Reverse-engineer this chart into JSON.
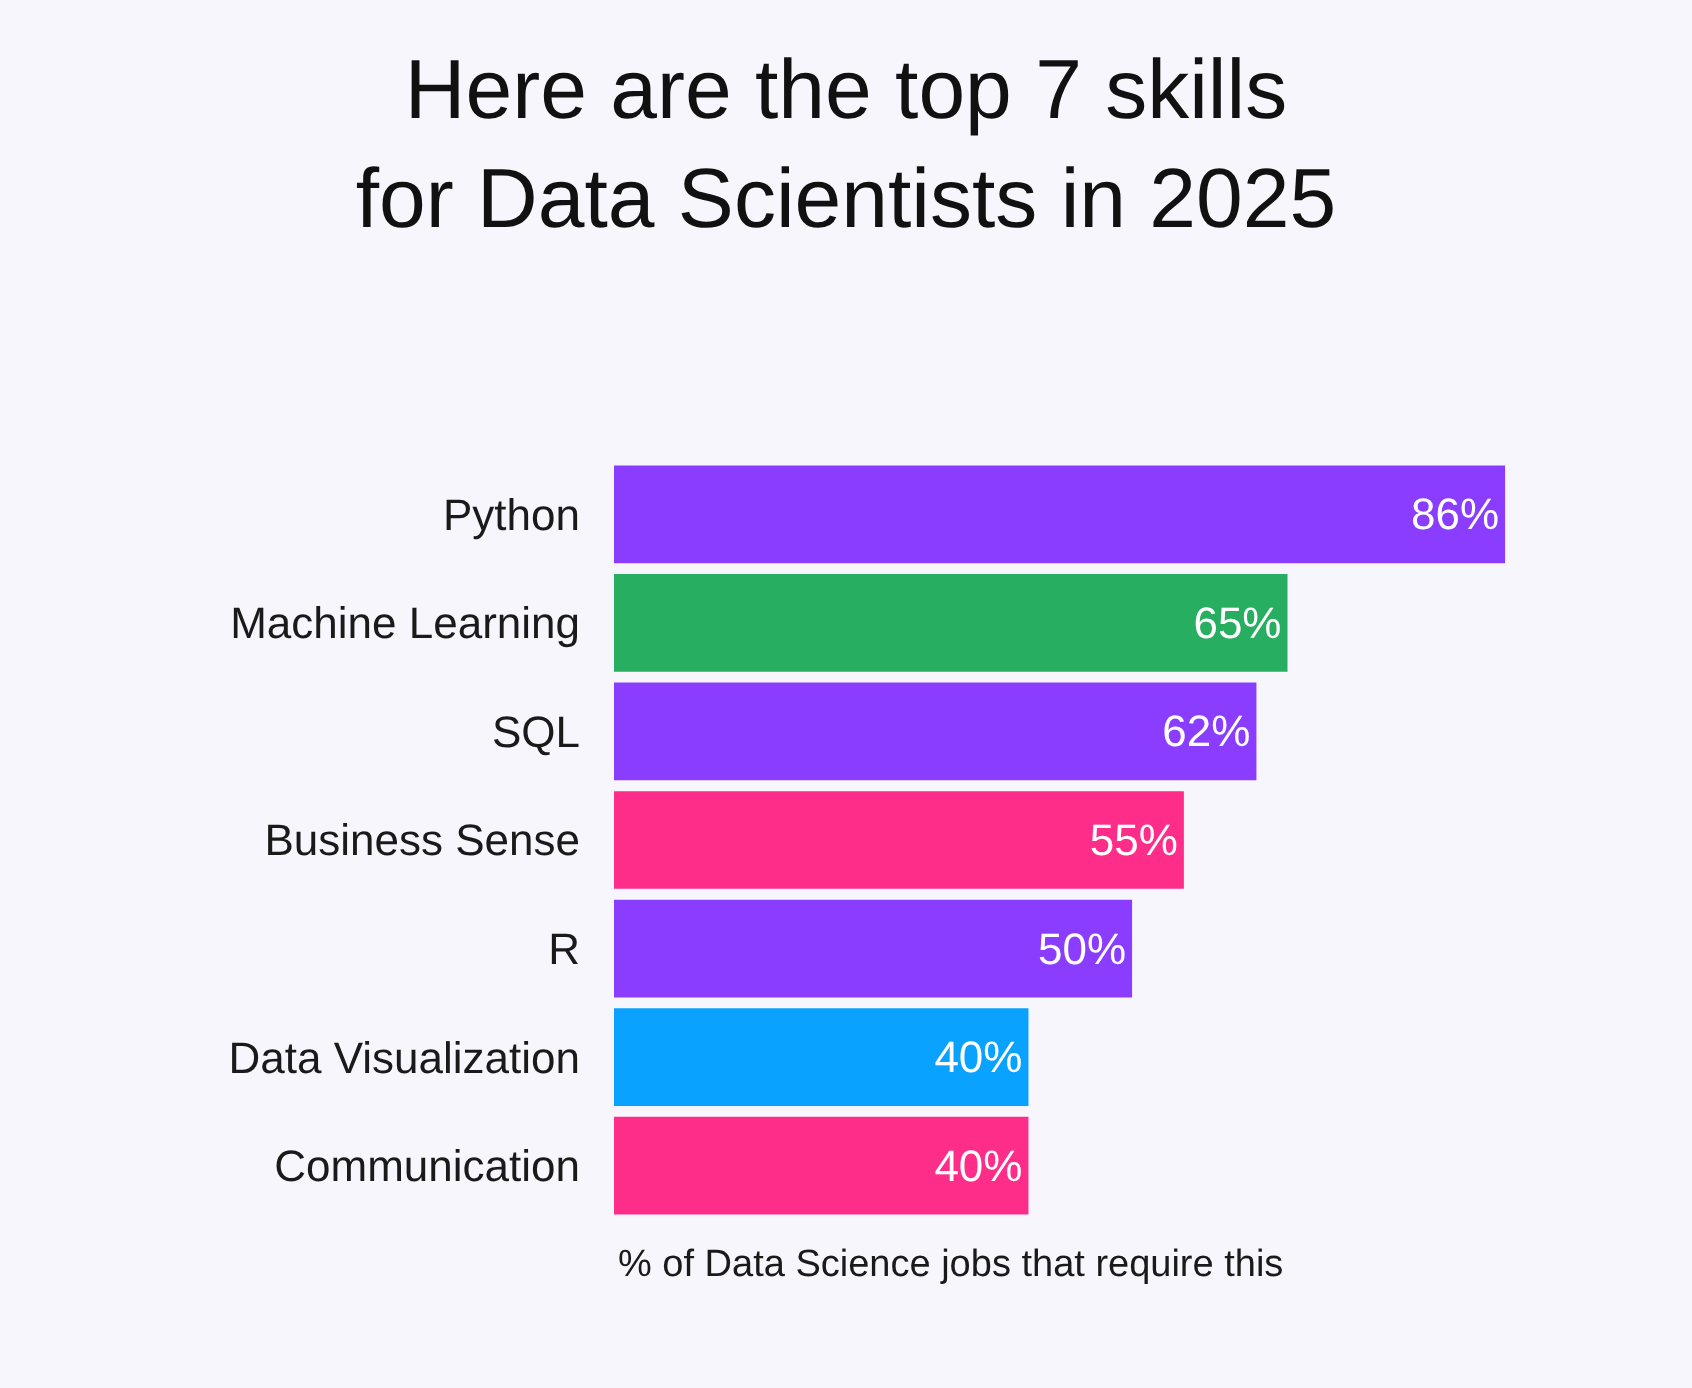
{
  "chart_data": {
    "type": "bar",
    "orientation": "horizontal",
    "title": "Here are the top 7 skills\nfor Data Scientists in 2025",
    "xlabel": "% of Data Science jobs that require this",
    "categories": [
      "Python",
      "Machine Learning",
      "SQL",
      "Business Sense",
      "R",
      "Data Visualization",
      "Communication"
    ],
    "values": [
      86,
      65,
      62,
      55,
      50,
      40,
      40
    ],
    "value_labels": [
      "86%",
      "65%",
      "62%",
      "55%",
      "50%",
      "40%",
      "40%"
    ],
    "colors": [
      "#8b3dff",
      "#27ae60",
      "#8b3dff",
      "#ff2d8a",
      "#8b3dff",
      "#0aa2ff",
      "#ff2d8a"
    ],
    "tick_labels": "y",
    "grid": false,
    "legend": false
  }
}
